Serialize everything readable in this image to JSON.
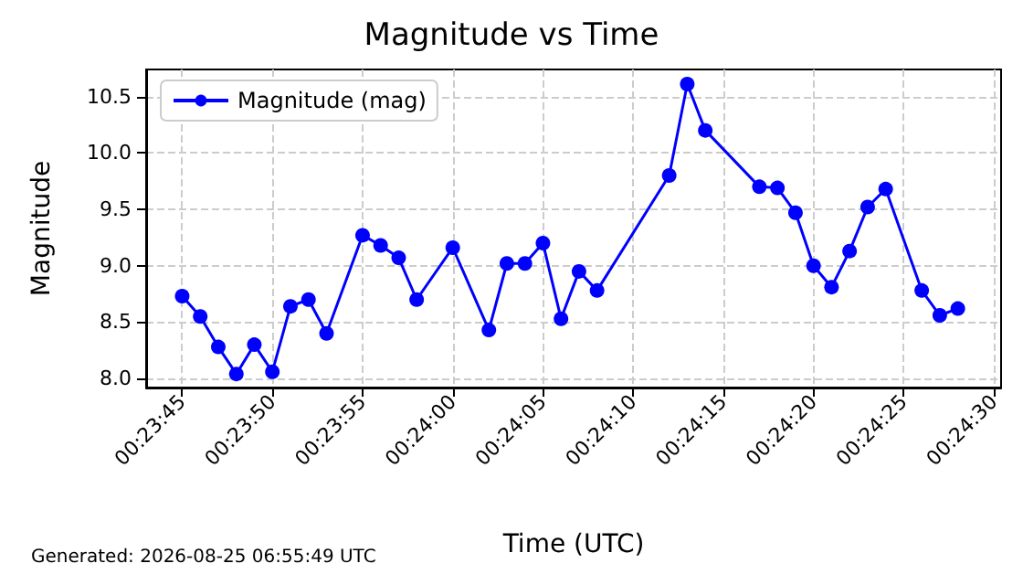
{
  "chart_data": {
    "type": "line",
    "title": "Magnitude vs Time",
    "xlabel": "Time (UTC)",
    "ylabel": "Magnitude",
    "annotations": [
      "Generated: 2026-08-25 06:55:49 UTC"
    ],
    "x": [
      0.395833,
      0.396111,
      0.396389,
      0.396667,
      0.396944,
      0.397222,
      0.3975,
      0.397778,
      0.398056,
      0.398611,
      0.398889,
      0.399167,
      0.399444,
      0.4,
      0.400556,
      0.400833,
      0.401111,
      0.401389,
      0.401667,
      0.401944,
      0.402222,
      0.403333,
      0.403611,
      0.403889,
      0.404722,
      0.405,
      0.405278,
      0.405556,
      0.405833,
      0.406111,
      0.406389,
      0.406667,
      0.407222,
      0.4075,
      0.407778
    ],
    "series": [
      {
        "name": "Magnitude (mag)",
        "color": "#0000ff",
        "values": [
          8.73,
          8.55,
          8.28,
          8.04,
          8.3,
          8.06,
          8.64,
          8.7,
          8.4,
          9.27,
          9.18,
          9.07,
          8.7,
          9.16,
          8.43,
          9.02,
          9.02,
          9.2,
          8.53,
          8.95,
          8.78,
          9.8,
          10.61,
          10.2,
          9.7,
          9.69,
          9.47,
          9.0,
          8.81,
          9.13,
          9.52,
          9.68,
          8.78,
          8.56,
          8.62
        ]
      }
    ],
    "xlim": [
      0.395278,
      0.408444
    ],
    "xticks": [
      {
        "value": 0.395833,
        "label": "00:23:45"
      },
      {
        "value": 0.397222,
        "label": "00:23:50"
      },
      {
        "value": 0.398611,
        "label": "00:23:55"
      },
      {
        "value": 0.4,
        "label": "00:24:00"
      },
      {
        "value": 0.401389,
        "label": "00:24:05"
      },
      {
        "value": 0.402778,
        "label": "00:24:10"
      },
      {
        "value": 0.404167,
        "label": "00:24:15"
      },
      {
        "value": 0.405556,
        "label": "00:24:20"
      },
      {
        "value": 0.406944,
        "label": "00:24:25"
      },
      {
        "value": 0.408333,
        "label": "00:24:30"
      }
    ],
    "ylim": [
      7.92,
      10.74
    ],
    "yticks": [
      {
        "value": 8,
        "label": "8.0"
      },
      {
        "value": 8.5,
        "label": "8.5"
      },
      {
        "value": 9,
        "label": "9.0"
      },
      {
        "value": 9.5,
        "label": "9.5"
      },
      {
        "value": 10,
        "label": "10.0"
      },
      {
        "value": 10.5,
        "label": "10.5"
      }
    ],
    "grid": true,
    "legend": "top left",
    "marker": "circle",
    "line_style": "solid"
  }
}
